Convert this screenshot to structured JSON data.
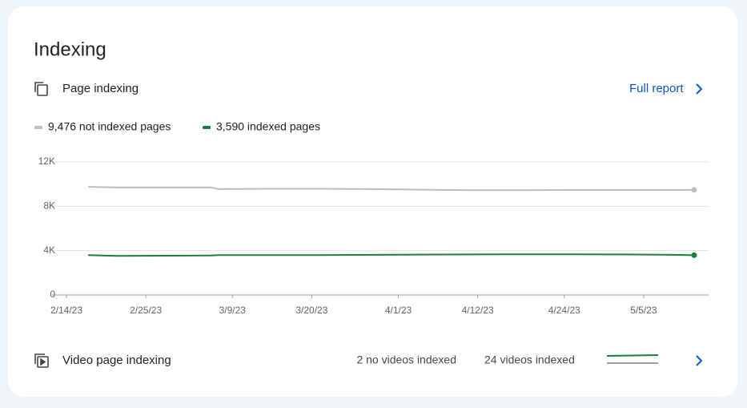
{
  "title": "Indexing",
  "section": {
    "label": "Page indexing",
    "link": "Full report"
  },
  "chart_data": {
    "type": "line",
    "x": [
      "2/17/23",
      "2/21/23",
      "2/28/23",
      "3/6/23",
      "3/7/23",
      "3/14/23",
      "3/21/23",
      "3/28/23",
      "4/4/23",
      "4/11/23",
      "4/18/23",
      "4/25/23",
      "5/2/23",
      "5/9/23",
      "5/12/23"
    ],
    "series": [
      {
        "name": "9,476 not indexed pages",
        "color": "#bdbdbd",
        "values": [
          9750,
          9700,
          9700,
          9700,
          9550,
          9580,
          9580,
          9550,
          9500,
          9450,
          9450,
          9470,
          9470,
          9470,
          9476
        ]
      },
      {
        "name": "3,590 indexed pages",
        "color": "#188038",
        "values": [
          3600,
          3520,
          3540,
          3560,
          3600,
          3600,
          3600,
          3620,
          3640,
          3660,
          3670,
          3670,
          3660,
          3620,
          3590
        ]
      }
    ],
    "xlim": [
      "2/12/23",
      "5/14/23"
    ],
    "xticks": [
      "2/14/23",
      "2/25/23",
      "3/9/23",
      "3/20/23",
      "4/1/23",
      "4/12/23",
      "4/24/23",
      "5/5/23"
    ],
    "ylim": [
      0,
      12000
    ],
    "yticks": [
      0,
      {
        "value": 4000,
        "label": "4K"
      },
      {
        "value": 8000,
        "label": "8K"
      },
      {
        "value": 12000,
        "label": "12K"
      }
    ],
    "grid": true
  },
  "video": {
    "label": "Video page indexing",
    "not_indexed": "2 no videos indexed",
    "indexed": "24 videos indexed"
  }
}
